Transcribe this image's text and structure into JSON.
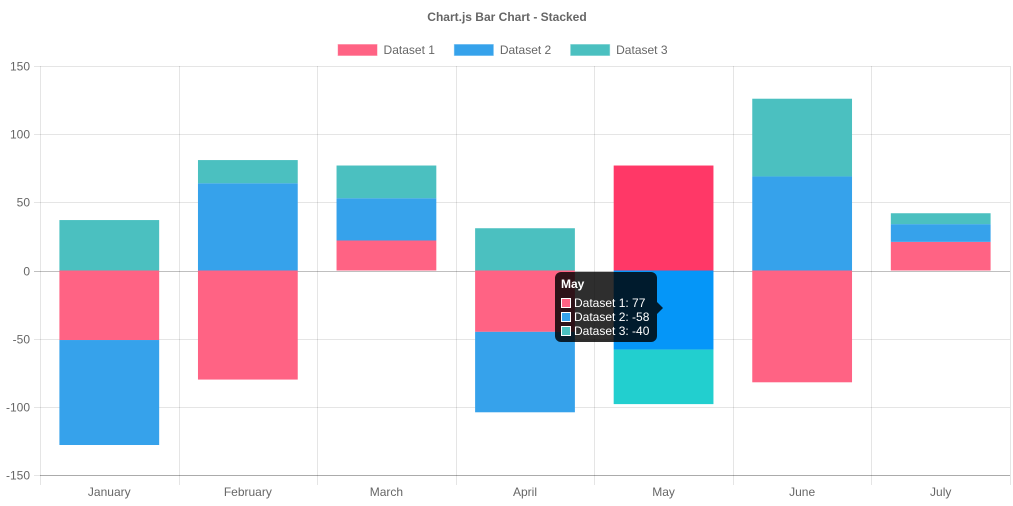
{
  "chart_data": {
    "type": "bar",
    "stacked": true,
    "title": "Chart.js Bar Chart - Stacked",
    "categories": [
      "January",
      "February",
      "March",
      "April",
      "May",
      "June",
      "July"
    ],
    "series": [
      {
        "name": "Dataset 1",
        "color": "#ff6384",
        "values": [
          -51,
          -80,
          22,
          -45,
          77,
          -82,
          21
        ]
      },
      {
        "name": "Dataset 2",
        "color": "#36a2eb",
        "values": [
          -77,
          64,
          31,
          -59,
          -58,
          69,
          13
        ]
      },
      {
        "name": "Dataset 3",
        "color": "#4bc0c0",
        "values": [
          37,
          17,
          24,
          31,
          -40,
          57,
          8
        ]
      }
    ],
    "ylim": [
      -150,
      150
    ],
    "yticks": [
      150,
      100,
      50,
      0,
      -50,
      -100,
      -150
    ],
    "grid": true,
    "legend": "top-center",
    "highlight": {
      "category_index": 4,
      "colors": [
        "#ff3867",
        "#0596f8",
        "#22cfcf"
      ]
    }
  },
  "tooltip": {
    "title": "May",
    "rows": [
      "Dataset 1: 77",
      "Dataset 2: -58",
      "Dataset 3: -40"
    ]
  }
}
